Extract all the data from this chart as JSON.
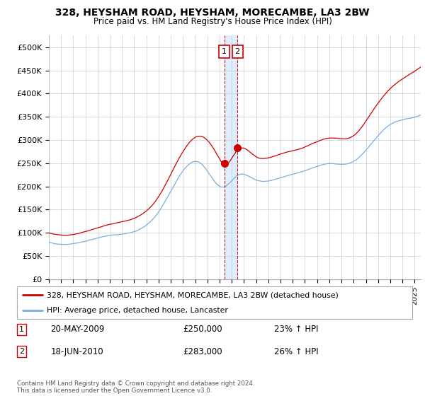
{
  "title1": "328, HEYSHAM ROAD, HEYSHAM, MORECAMBE, LA3 2BW",
  "title2": "Price paid vs. HM Land Registry's House Price Index (HPI)",
  "legend_line1": "328, HEYSHAM ROAD, HEYSHAM, MORECAMBE, LA3 2BW (detached house)",
  "legend_line2": "HPI: Average price, detached house, Lancaster",
  "annotation1_date": "20-MAY-2009",
  "annotation1_price": "£250,000",
  "annotation1_hpi": "23% ↑ HPI",
  "annotation2_date": "18-JUN-2010",
  "annotation2_price": "£283,000",
  "annotation2_hpi": "26% ↑ HPI",
  "footer": "Contains HM Land Registry data © Crown copyright and database right 2024.\nThis data is licensed under the Open Government Licence v3.0.",
  "red_color": "#cc0000",
  "blue_color": "#7aade0",
  "shade_color": "#ddeeff",
  "grid_color": "#cccccc",
  "ylim_min": 0,
  "ylim_max": 525000,
  "yticks": [
    0,
    50000,
    100000,
    150000,
    200000,
    250000,
    300000,
    350000,
    400000,
    450000,
    500000
  ],
  "ytick_labels": [
    "£0",
    "£50K",
    "£100K",
    "£150K",
    "£200K",
    "£250K",
    "£300K",
    "£350K",
    "£400K",
    "£450K",
    "£500K"
  ],
  "vline1_x": 2009.38,
  "vline2_x": 2010.46,
  "marker1_x": 2009.38,
  "marker1_y": 250000,
  "marker2_x": 2010.46,
  "marker2_y": 283000,
  "xmin": 1995,
  "xmax": 2025.5
}
